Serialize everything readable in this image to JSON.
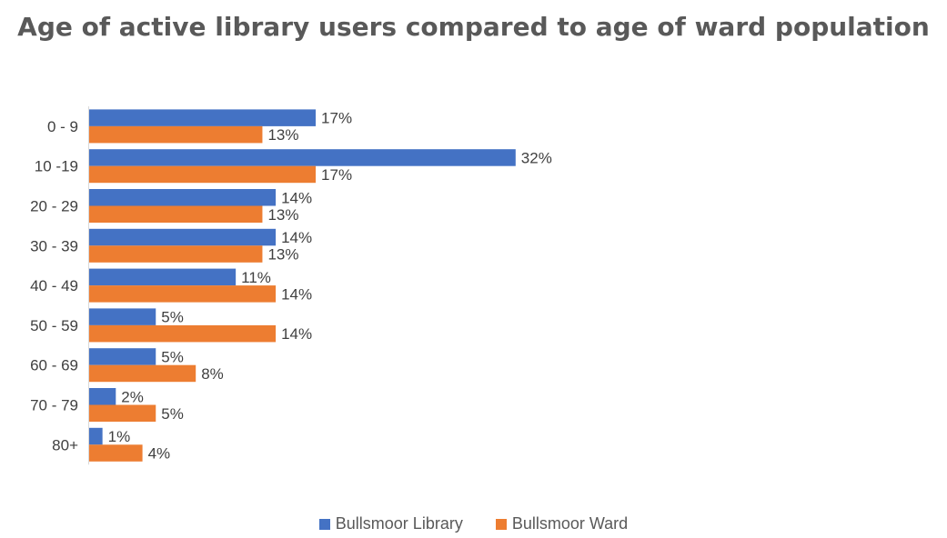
{
  "chart_data": {
    "type": "bar",
    "orientation": "horizontal",
    "title": "Age of active library users compared to age of ward population",
    "categories": [
      "0 - 9",
      "10 -19",
      "20 - 29",
      "30 - 39",
      "40 - 49",
      "50 - 59",
      "60 - 69",
      "70 - 79",
      "80+"
    ],
    "series": [
      {
        "name": "Bullsmoor Library",
        "color": "#4472C4",
        "values": [
          17,
          32,
          14,
          14,
          11,
          5,
          5,
          2,
          1
        ],
        "labels": [
          "17%",
          "32%",
          "14%",
          "14%",
          "11%",
          "5%",
          "5%",
          "2%",
          "1%"
        ]
      },
      {
        "name": "Bullsmoor Ward",
        "color": "#ED7D31",
        "values": [
          13,
          17,
          13,
          13,
          14,
          14,
          8,
          5,
          4
        ],
        "labels": [
          "13%",
          "17%",
          "13%",
          "13%",
          "14%",
          "14%",
          "8%",
          "5%",
          "4%"
        ]
      }
    ],
    "value_unit": "%",
    "xlim": [
      0,
      34
    ],
    "grid": false,
    "legend_position": "bottom"
  }
}
